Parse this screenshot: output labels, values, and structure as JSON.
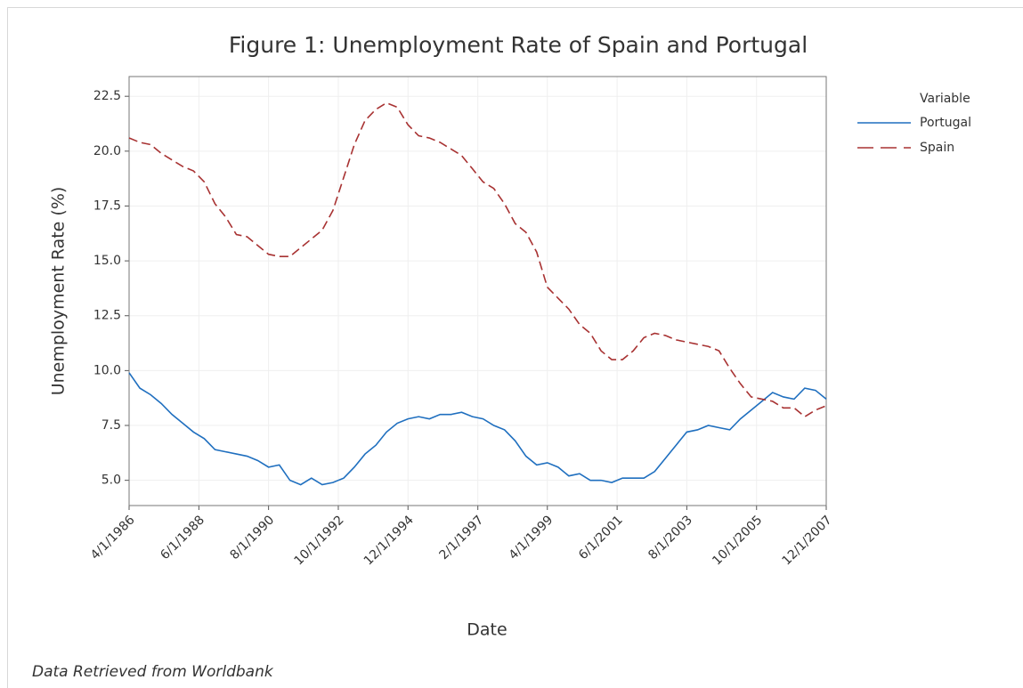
{
  "chart_data": {
    "type": "line",
    "title": "Figure 1: Unemployment Rate of Spain and Portugal",
    "x_label": "Date",
    "y_label": "Unemployment Rate (%)",
    "legend_title": "Variable",
    "legend_position": "right",
    "source": "Data Retrieved from Worldbank",
    "grid": true,
    "x": [
      "4/1/1986",
      "8/1/1986",
      "12/1/1986",
      "4/1/1987",
      "8/1/1987",
      "12/1/1987",
      "4/1/1988",
      "8/1/1988",
      "12/1/1988",
      "4/1/1989",
      "8/1/1989",
      "12/1/1989",
      "4/1/1990",
      "8/1/1990",
      "12/1/1990",
      "4/1/1991",
      "8/1/1991",
      "12/1/1991",
      "4/1/1992",
      "8/1/1992",
      "12/1/1992",
      "4/1/1993",
      "8/1/1993",
      "12/1/1993",
      "4/1/1994",
      "8/1/1994",
      "12/1/1994",
      "4/1/1995",
      "8/1/1995",
      "12/1/1995",
      "4/1/1996",
      "8/1/1996",
      "12/1/1996",
      "4/1/1997",
      "8/1/1997",
      "12/1/1997",
      "4/1/1998",
      "8/1/1998",
      "12/1/1998",
      "4/1/1999",
      "8/1/1999",
      "12/1/1999",
      "4/1/2000",
      "8/1/2000",
      "12/1/2000",
      "4/1/2001",
      "8/1/2001",
      "12/1/2001",
      "4/1/2002",
      "8/1/2002",
      "12/1/2002",
      "4/1/2003",
      "8/1/2003",
      "12/1/2003",
      "4/1/2004",
      "8/1/2004",
      "12/1/2004",
      "4/1/2005",
      "8/1/2005",
      "12/1/2005",
      "4/1/2006",
      "8/1/2006",
      "12/1/2006",
      "4/1/2007",
      "8/1/2007",
      "12/1/2007"
    ],
    "xlim": [
      "4/1/1986",
      "12/1/2007"
    ],
    "xticks": [
      "4/1/1986",
      "6/1/1988",
      "8/1/1990",
      "10/1/1992",
      "12/1/1994",
      "2/1/1997",
      "4/1/1999",
      "6/1/2001",
      "8/1/2003",
      "10/1/2005",
      "12/1/2007"
    ],
    "ylim": [
      3.85,
      23.4
    ],
    "yticks": [
      {
        "value": 5,
        "label": "5.0"
      },
      {
        "value": 7.5,
        "label": "7.5"
      },
      {
        "value": 10,
        "label": "10.0"
      },
      {
        "value": 12.5,
        "label": "12.5"
      },
      {
        "value": 15,
        "label": "15.0"
      },
      {
        "value": 17.5,
        "label": "17.5"
      },
      {
        "value": 20,
        "label": "20.0"
      },
      {
        "value": 22.5,
        "label": "22.5"
      }
    ],
    "series": [
      {
        "name": "Portugal",
        "color": "#1f6fbf",
        "line_style": "solid",
        "values": [
          9.9,
          9.2,
          8.9,
          8.5,
          8.0,
          7.6,
          7.2,
          6.9,
          6.4,
          6.3,
          6.2,
          6.1,
          5.9,
          5.6,
          5.7,
          5.0,
          4.8,
          5.1,
          4.8,
          4.9,
          5.1,
          5.6,
          6.2,
          6.6,
          7.2,
          7.6,
          7.8,
          7.9,
          7.8,
          8.0,
          8.0,
          8.1,
          7.9,
          7.8,
          7.5,
          7.3,
          6.8,
          6.1,
          5.7,
          5.8,
          5.6,
          5.2,
          5.3,
          5.0,
          5.0,
          4.9,
          5.1,
          5.1,
          5.1,
          5.4,
          6.0,
          6.6,
          7.2,
          7.3,
          7.5,
          7.4,
          7.3,
          7.8,
          8.2,
          8.6,
          9.0,
          8.8,
          8.7,
          9.2,
          9.1,
          8.7
        ]
      },
      {
        "name": "Spain",
        "color": "#a83232",
        "line_style": "dashed",
        "values": [
          20.6,
          20.4,
          20.3,
          19.9,
          19.6,
          19.3,
          19.1,
          18.6,
          17.6,
          17.0,
          16.2,
          16.1,
          15.7,
          15.3,
          15.2,
          15.2,
          15.6,
          16.0,
          16.4,
          17.3,
          18.8,
          20.3,
          21.4,
          21.9,
          22.2,
          22.0,
          21.2,
          20.7,
          20.6,
          20.4,
          20.1,
          19.8,
          19.2,
          18.6,
          18.3,
          17.6,
          16.7,
          16.3,
          15.4,
          13.8,
          13.3,
          12.8,
          12.1,
          11.7,
          10.9,
          10.5,
          10.5,
          10.9,
          11.5,
          11.7,
          11.6,
          11.4,
          11.3,
          11.2,
          11.1,
          10.9,
          10.1,
          9.4,
          8.8,
          8.7,
          8.6,
          8.3,
          8.3,
          7.9,
          8.2,
          8.4
        ]
      }
    ]
  }
}
